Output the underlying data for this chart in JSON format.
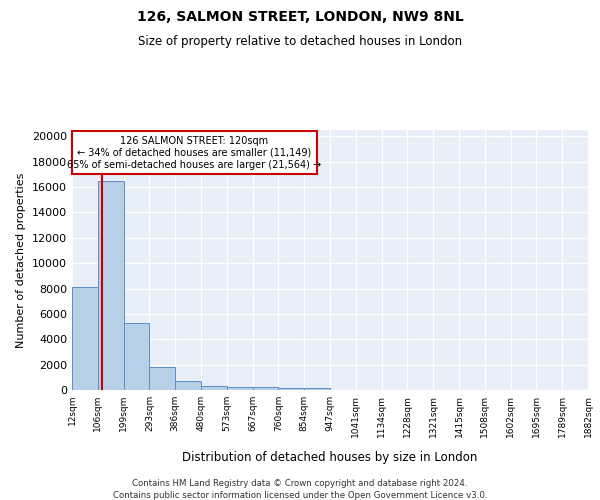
{
  "title1": "126, SALMON STREET, LONDON, NW9 8NL",
  "title2": "Size of property relative to detached houses in London",
  "xlabel": "Distribution of detached houses by size in London",
  "ylabel": "Number of detached properties",
  "bin_edges": [
    0,
    1,
    2,
    3,
    4,
    5,
    6,
    7,
    8,
    9,
    10,
    11,
    12,
    13,
    14,
    15,
    16,
    17,
    18,
    19,
    20
  ],
  "bin_labels": [
    "12sqm",
    "106sqm",
    "199sqm",
    "293sqm",
    "386sqm",
    "480sqm",
    "573sqm",
    "667sqm",
    "760sqm",
    "854sqm",
    "947sqm",
    "1041sqm",
    "1134sqm",
    "1228sqm",
    "1321sqm",
    "1415sqm",
    "1508sqm",
    "1602sqm",
    "1695sqm",
    "1789sqm",
    "1882sqm"
  ],
  "bar_heights": [
    8100,
    16500,
    5300,
    1850,
    700,
    320,
    230,
    210,
    175,
    130,
    0,
    0,
    0,
    0,
    0,
    0,
    0,
    0,
    0,
    0
  ],
  "property_line_x": 1.15,
  "annotation_text_line1": "126 SALMON STREET: 120sqm",
  "annotation_text_line2": "← 34% of detached houses are smaller (11,149)",
  "annotation_text_line3": "65% of semi-detached houses are larger (21,564) →",
  "bar_color": "#b8cfe8",
  "bar_edge_color": "#5b8fc9",
  "line_color": "#cc0000",
  "box_edge_color": "#cc0000",
  "background_color": "#e8eef8",
  "ylim": [
    0,
    20500
  ],
  "yticks": [
    0,
    2000,
    4000,
    6000,
    8000,
    10000,
    12000,
    14000,
    16000,
    18000,
    20000
  ],
  "footer1": "Contains HM Land Registry data © Crown copyright and database right 2024.",
  "footer2": "Contains public sector information licensed under the Open Government Licence v3.0."
}
